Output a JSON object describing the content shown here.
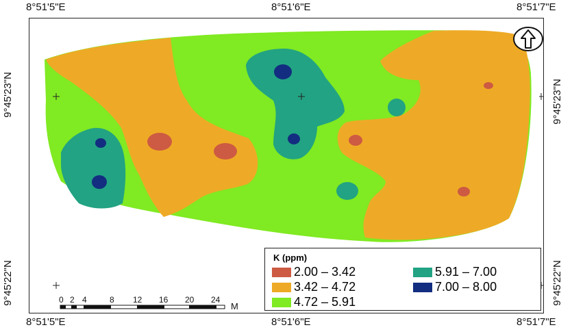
{
  "coords": {
    "top": [
      "8°51'5\"E",
      "8°51'6\"E",
      "8°51'7\"E"
    ],
    "bottom": [
      "8°51'5\"E",
      "8°51'6\"E",
      "8°51'7\"E"
    ],
    "left": [
      "9°45'23\"N",
      "9°45'22\"N"
    ],
    "right": [
      "9°45'23\"N",
      "9°45'22\"N"
    ]
  },
  "legend": {
    "title": "K (ppm)",
    "items": [
      {
        "label": "2.00 – 3.42",
        "color": "#cd5a43"
      },
      {
        "label": "3.42 – 4.72",
        "color": "#eeaa26"
      },
      {
        "label": "4.72 – 5.91",
        "color": "#80ea22"
      },
      {
        "label": "5.91 – 7.00",
        "color": "#22a383"
      },
      {
        "label": "7.00 – 8.00",
        "color": "#132d80"
      }
    ]
  },
  "scalebar": {
    "ticks": [
      "0",
      "2",
      "4",
      "8",
      "12",
      "16",
      "20",
      "24"
    ],
    "unit": "M"
  },
  "north_arrow": {
    "icon": "north-arrow-icon"
  }
}
